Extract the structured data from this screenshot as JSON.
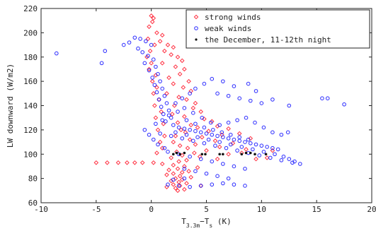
{
  "chart_data": {
    "type": "scatter",
    "title": "",
    "xlabel": "T3.3m−Ts (K)",
    "xlabel_parts": {
      "main": "T",
      "sub": "3.3m",
      "mid": "−T",
      "sub2": "s",
      "unit": " (K)"
    },
    "ylabel": "LW downward (W/m2)",
    "xlim": [
      -10,
      20
    ],
    "ylim": [
      60,
      220
    ],
    "xticks": [
      -10,
      -5,
      0,
      5,
      10,
      15,
      20
    ],
    "yticks": [
      60,
      80,
      100,
      120,
      140,
      160,
      180,
      200,
      220
    ],
    "legend_position": "top-right",
    "grid": false,
    "series": [
      {
        "name": "strong winds",
        "color": "#ff3344",
        "marker": "diamond",
        "points": [
          [
            0.0,
            214
          ],
          [
            0.2,
            212
          ],
          [
            0.1,
            209
          ],
          [
            -0.2,
            205
          ],
          [
            0.5,
            200
          ],
          [
            1.0,
            198
          ],
          [
            0.8,
            193
          ],
          [
            1.5,
            190
          ],
          [
            2.0,
            188
          ],
          [
            1.2,
            185
          ],
          [
            1.8,
            182
          ],
          [
            2.4,
            180
          ],
          [
            2.8,
            177
          ],
          [
            1.0,
            175
          ],
          [
            2.2,
            172
          ],
          [
            3.0,
            170
          ],
          [
            2.6,
            166
          ],
          [
            1.6,
            163
          ],
          [
            3.4,
            160
          ],
          [
            2.0,
            158
          ],
          [
            2.9,
            155
          ],
          [
            3.6,
            152
          ],
          [
            1.4,
            150
          ],
          [
            2.5,
            147
          ],
          [
            3.2,
            145
          ],
          [
            4.0,
            142
          ],
          [
            2.1,
            140
          ],
          [
            3.8,
            138
          ],
          [
            4.5,
            135
          ],
          [
            1.9,
            133
          ],
          [
            3.0,
            131
          ],
          [
            4.8,
            129
          ],
          [
            5.5,
            127
          ],
          [
            2.4,
            126
          ],
          [
            3.6,
            124
          ],
          [
            6.0,
            123
          ],
          [
            4.2,
            122
          ],
          [
            7.0,
            121
          ],
          [
            2.7,
            120
          ],
          [
            5.2,
            119
          ],
          [
            3.1,
            118
          ],
          [
            8.0,
            117
          ],
          [
            6.4,
            116
          ],
          [
            2.2,
            115
          ],
          [
            4.6,
            114
          ],
          [
            9.0,
            113
          ],
          [
            3.5,
            112
          ],
          [
            5.8,
            111
          ],
          [
            2.0,
            110
          ],
          [
            7.4,
            109
          ],
          [
            4.0,
            108
          ],
          [
            2.6,
            107
          ],
          [
            6.2,
            106
          ],
          [
            3.3,
            105
          ],
          [
            8.6,
            104
          ],
          [
            5.0,
            103
          ],
          [
            2.3,
            102
          ],
          [
            3.9,
            101
          ],
          [
            7.0,
            100
          ],
          [
            2.8,
            99
          ],
          [
            4.4,
            98
          ],
          [
            1.8,
            97
          ],
          [
            6.0,
            96
          ],
          [
            3.2,
            95
          ],
          [
            2.5,
            94
          ],
          [
            -5.0,
            93
          ],
          [
            -4.0,
            93
          ],
          [
            -3.0,
            93
          ],
          [
            -2.2,
            93
          ],
          [
            -1.5,
            93
          ],
          [
            -0.8,
            93
          ],
          [
            0.2,
            93
          ],
          [
            1.0,
            92
          ],
          [
            2.0,
            91
          ],
          [
            3.0,
            90
          ],
          [
            4.2,
            89
          ],
          [
            2.4,
            88
          ],
          [
            1.6,
            87
          ],
          [
            3.4,
            86
          ],
          [
            2.8,
            85
          ],
          [
            2.0,
            84
          ],
          [
            1.4,
            83
          ],
          [
            2.6,
            82
          ],
          [
            3.6,
            81
          ],
          [
            2.2,
            80
          ],
          [
            2.8,
            79
          ],
          [
            1.8,
            78
          ],
          [
            2.5,
            77
          ],
          [
            3.2,
            76
          ],
          [
            2.0,
            75
          ],
          [
            2.6,
            74
          ],
          [
            1.4,
            73
          ],
          [
            2.2,
            72
          ],
          [
            3.0,
            71
          ],
          [
            2.4,
            70
          ],
          [
            4.5,
            74
          ],
          [
            0.5,
            101
          ],
          [
            1.0,
            105
          ],
          [
            0.8,
            110
          ],
          [
            1.2,
            115
          ],
          [
            0.6,
            120
          ],
          [
            1.1,
            125
          ],
          [
            0.4,
            130
          ],
          [
            0.9,
            135
          ],
          [
            0.3,
            140
          ],
          [
            0.7,
            145
          ],
          [
            0.2,
            150
          ],
          [
            0.5,
            155
          ],
          [
            0.1,
            160
          ],
          [
            0.4,
            165
          ],
          [
            -0.2,
            170
          ],
          [
            0.0,
            175
          ],
          [
            -0.4,
            180
          ],
          [
            -0.1,
            185
          ],
          [
            0.3,
            190
          ],
          [
            -0.3,
            195
          ],
          [
            9.5,
            96
          ],
          [
            10.5,
            97
          ],
          [
            8.2,
            101
          ],
          [
            11.0,
            103
          ]
        ]
      },
      {
        "name": "weak winds",
        "color": "#2b2bff",
        "marker": "circle",
        "points": [
          [
            -8.6,
            183
          ],
          [
            -4.2,
            185
          ],
          [
            -4.5,
            175
          ],
          [
            -2.5,
            190
          ],
          [
            -2.0,
            192
          ],
          [
            -1.5,
            196
          ],
          [
            -1.0,
            195
          ],
          [
            -0.5,
            193
          ],
          [
            0.0,
            190
          ],
          [
            -1.2,
            187
          ],
          [
            -0.8,
            184
          ],
          [
            -0.3,
            181
          ],
          [
            0.2,
            178
          ],
          [
            -0.6,
            175
          ],
          [
            0.4,
            172
          ],
          [
            -0.2,
            169
          ],
          [
            0.6,
            166
          ],
          [
            0.1,
            163
          ],
          [
            0.8,
            160
          ],
          [
            0.3,
            157
          ],
          [
            1.0,
            154
          ],
          [
            0.5,
            151
          ],
          [
            1.2,
            148
          ],
          [
            0.7,
            145
          ],
          [
            1.4,
            142
          ],
          [
            0.9,
            139
          ],
          [
            1.6,
            136
          ],
          [
            1.1,
            133
          ],
          [
            1.8,
            130
          ],
          [
            1.3,
            127
          ],
          [
            2.0,
            124
          ],
          [
            2.5,
            122
          ],
          [
            3.0,
            121
          ],
          [
            3.5,
            120
          ],
          [
            4.0,
            119
          ],
          [
            4.5,
            118
          ],
          [
            5.0,
            117
          ],
          [
            5.5,
            116
          ],
          [
            6.0,
            115
          ],
          [
            6.5,
            114
          ],
          [
            7.0,
            113
          ],
          [
            7.5,
            112
          ],
          [
            8.0,
            111
          ],
          [
            8.5,
            110
          ],
          [
            9.0,
            109
          ],
          [
            9.5,
            108
          ],
          [
            10.0,
            107
          ],
          [
            10.5,
            106
          ],
          [
            11.0,
            105
          ],
          [
            11.5,
            104
          ],
          [
            2.2,
            118
          ],
          [
            3.2,
            116
          ],
          [
            4.2,
            114
          ],
          [
            5.2,
            112
          ],
          [
            6.2,
            110
          ],
          [
            7.2,
            108
          ],
          [
            8.2,
            106
          ],
          [
            9.2,
            104
          ],
          [
            10.2,
            102
          ],
          [
            11.2,
            100
          ],
          [
            12.0,
            98
          ],
          [
            12.5,
            96
          ],
          [
            13.0,
            94
          ],
          [
            13.5,
            92
          ],
          [
            12.8,
            93
          ],
          [
            11.8,
            95
          ],
          [
            10.8,
            97
          ],
          [
            9.8,
            99
          ],
          [
            8.8,
            101
          ],
          [
            7.8,
            103
          ],
          [
            6.8,
            105
          ],
          [
            5.8,
            107
          ],
          [
            4.8,
            109
          ],
          [
            3.8,
            111
          ],
          [
            2.8,
            113
          ],
          [
            1.8,
            115
          ],
          [
            0.8,
            117
          ],
          [
            1.5,
            102
          ],
          [
            2.5,
            100
          ],
          [
            3.5,
            98
          ],
          [
            4.5,
            96
          ],
          [
            5.5,
            94
          ],
          [
            6.5,
            92
          ],
          [
            7.5,
            90
          ],
          [
            8.5,
            88
          ],
          [
            3.0,
            88
          ],
          [
            4.0,
            86
          ],
          [
            5.0,
            84
          ],
          [
            6.0,
            82
          ],
          [
            7.0,
            80
          ],
          [
            1.5,
            75
          ],
          [
            2.5,
            74
          ],
          [
            3.5,
            73
          ],
          [
            4.5,
            74
          ],
          [
            5.5,
            75
          ],
          [
            6.5,
            76
          ],
          [
            7.5,
            75
          ],
          [
            8.5,
            74
          ],
          [
            2.0,
            79
          ],
          [
            3.0,
            80
          ],
          [
            6.0,
            150
          ],
          [
            7.0,
            148
          ],
          [
            8.0,
            146
          ],
          [
            9.0,
            144
          ],
          [
            10.0,
            142
          ],
          [
            11.0,
            145
          ],
          [
            12.5,
            140
          ],
          [
            15.5,
            146
          ],
          [
            16.0,
            146
          ],
          [
            17.5,
            141
          ],
          [
            9.5,
            152
          ],
          [
            8.8,
            158
          ],
          [
            7.5,
            156
          ],
          [
            6.5,
            160
          ],
          [
            5.5,
            162
          ],
          [
            4.8,
            158
          ],
          [
            4.0,
            154
          ],
          [
            3.5,
            150
          ],
          [
            2.8,
            146
          ],
          [
            2.2,
            142
          ],
          [
            3.0,
            138
          ],
          [
            3.8,
            134
          ],
          [
            4.6,
            130
          ],
          [
            5.4,
            126
          ],
          [
            6.2,
            124
          ],
          [
            7.0,
            126
          ],
          [
            7.8,
            128
          ],
          [
            8.6,
            130
          ],
          [
            9.4,
            126
          ],
          [
            10.2,
            122
          ],
          [
            11.0,
            118
          ],
          [
            11.8,
            116
          ],
          [
            12.4,
            118
          ],
          [
            1.2,
            105
          ],
          [
            0.6,
            108
          ],
          [
            0.2,
            112
          ],
          [
            -0.2,
            116
          ],
          [
            -0.6,
            120
          ],
          [
            0.4,
            125
          ],
          [
            1.0,
            128
          ],
          [
            1.6,
            132
          ],
          [
            2.4,
            135
          ],
          [
            3.2,
            128
          ],
          [
            4.0,
            125
          ],
          [
            4.8,
            122
          ],
          [
            5.6,
            120
          ],
          [
            6.4,
            118
          ],
          [
            7.2,
            116
          ],
          [
            8.0,
            114
          ],
          [
            8.8,
            112
          ]
        ]
      },
      {
        "name": "the December, 11-12th night",
        "color": "#111111",
        "marker": "dot",
        "points": [
          [
            2.0,
            100
          ],
          [
            2.3,
            101
          ],
          [
            2.6,
            100
          ],
          [
            3.0,
            101
          ],
          [
            4.6,
            100
          ],
          [
            4.9,
            100
          ],
          [
            6.2,
            100
          ],
          [
            6.5,
            100
          ],
          [
            8.2,
            100
          ],
          [
            8.6,
            101
          ],
          [
            9.0,
            101
          ],
          [
            9.4,
            100
          ],
          [
            10.4,
            100
          ]
        ]
      }
    ]
  }
}
